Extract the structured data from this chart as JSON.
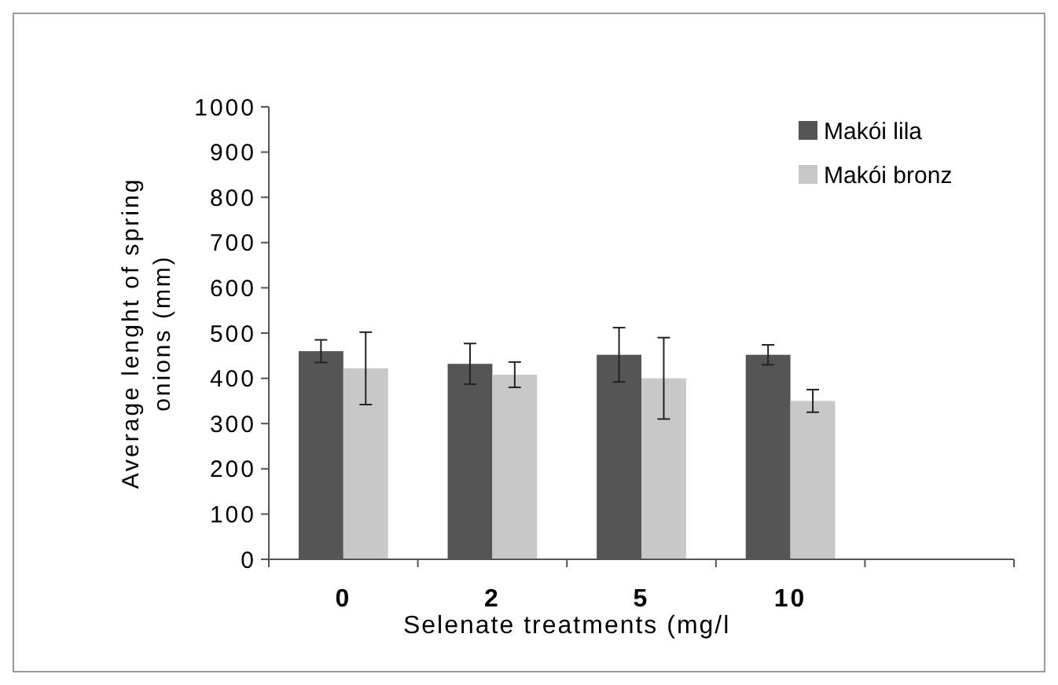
{
  "chart_data": {
    "type": "bar",
    "xlabel": "Selenate treatments (mg/l",
    "ylabel": "Average lenght of spring onions (mm)",
    "categories": [
      "0",
      "2",
      "5",
      "10",
      null
    ],
    "series": [
      {
        "name": "Makói lila",
        "color": "#555555",
        "values": [
          460,
          432,
          452,
          452,
          null
        ],
        "errors": [
          25,
          45,
          60,
          22,
          null
        ]
      },
      {
        "name": "Makói bronz",
        "color": "#c8c8c8",
        "values": [
          422,
          408,
          400,
          350,
          null
        ],
        "errors": [
          80,
          28,
          90,
          25,
          null
        ]
      }
    ],
    "ylim": [
      0,
      1000
    ],
    "yticks": [
      0,
      100,
      200,
      300,
      400,
      500,
      600,
      700,
      800,
      900,
      1000
    ],
    "grid": false,
    "legend": "top right"
  }
}
